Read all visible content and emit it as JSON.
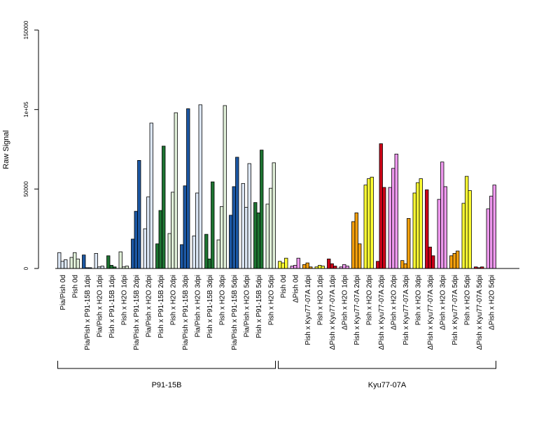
{
  "colors": {
    "light_blue": "#dbe6f4",
    "dark_blue": "#1c58a4",
    "dark_green": "#1e7432",
    "light_green": "#e0efd8",
    "yellow": "#ffff33",
    "violet": "#ee99ee",
    "red": "#cc0018",
    "orange": "#f5a00d"
  },
  "chart_data": {
    "type": "bar",
    "title": "",
    "xlabel": "",
    "ylabel": "Raw Signal",
    "ylim": [
      0,
      150000
    ],
    "yticks": [
      {
        "value": 0,
        "label": "0"
      },
      {
        "value": 50000,
        "label": "50000"
      },
      {
        "value": 100000,
        "label": "1e+05"
      },
      {
        "value": 150000,
        "label": "150000"
      }
    ],
    "grid": false,
    "legend": "none",
    "categories": [
      "Pia/Pish 0d",
      "Pish 0d",
      "Pia/Pish x P91-15B 1dpi",
      "Pia/Pish x H2O 1dpi",
      "Pish x P91-15B 1dpi",
      "Pish x H2O 1dpi",
      "Pia/Pish x P91-15B 2dpi",
      "Pia/Pish x H2O 2dpi",
      "Pish x P91-15B 2dpi",
      "Pish x H2O 2dpi",
      "Pia/Pish x P91-15B 3dpi",
      "Pia/Pish x H2O 3dpi",
      "Pish x P91-15B 3dpi",
      "Pish x H2O 3dpi",
      "Pia/Pish x P91-15B 5dpi",
      "Pia/Pish x H2O 5dpi",
      "Pish x P91-15B 5dpi",
      "Pish x H2O 5dpi",
      "Pish 0d",
      "ΔPish 0d",
      "Pish x Kyu77-07A 1dpi",
      "Pish x H2O 1dpi",
      "ΔPish x Kyu77-07A 1dpi",
      "ΔPish x H2O 1dpi",
      "Pish x Kyu77-07A 2dpi",
      "Pish x H2O 2dpi",
      "ΔPish x Kyu77-07A 2dpi",
      "ΔPish x H2O 2dpi",
      "Pish x Kyu77-07A 3dpi",
      "Pish x H2O 3dpi",
      "ΔPish x Kyu77-07A 3dpi",
      "ΔPish x H2O 3dpi",
      "Pish x Kyu77-07A 5dpi",
      "Pish x H2O 5dpi",
      "ΔPish x Kyu77-07A 5dpi",
      "ΔPish x H2O 5dpi"
    ],
    "bar_colors": [
      "light_blue",
      "light_green",
      "dark_blue",
      "light_blue",
      "dark_green",
      "light_green",
      "dark_blue",
      "light_blue",
      "dark_green",
      "light_green",
      "dark_blue",
      "light_blue",
      "dark_green",
      "light_green",
      "dark_blue",
      "light_blue",
      "dark_green",
      "light_green",
      "yellow",
      "violet",
      "orange",
      "yellow",
      "red",
      "violet",
      "orange",
      "yellow",
      "red",
      "violet",
      "orange",
      "yellow",
      "red",
      "violet",
      "orange",
      "yellow",
      "red",
      "violet"
    ],
    "values": [
      [
        10000,
        4500,
        5500
      ],
      [
        7000,
        10000,
        6000
      ],
      [
        8500,
        500,
        500
      ],
      [
        9500,
        1000,
        1500
      ],
      [
        8000,
        2000,
        1000
      ],
      [
        10500,
        1000,
        1500
      ],
      [
        18500,
        36000,
        68000
      ],
      [
        25000,
        45000,
        91500
      ],
      [
        15500,
        36500,
        77000
      ],
      [
        22000,
        48000,
        98000
      ],
      [
        15000,
        52000,
        100500
      ],
      [
        20500,
        47500,
        103000
      ],
      [
        21500,
        6000,
        54500
      ],
      [
        18000,
        39000,
        102500
      ],
      [
        33500,
        51500,
        70000
      ],
      [
        53500,
        38500,
        66000
      ],
      [
        41500,
        35000,
        74500
      ],
      [
        40500,
        50500,
        66500
      ],
      [
        4500,
        3500,
        6500
      ],
      [
        1500,
        2000,
        6500
      ],
      [
        2500,
        3500,
        1000
      ],
      [
        1000,
        2000,
        1500
      ],
      [
        6000,
        3000,
        1500
      ],
      [
        1000,
        2500,
        1500
      ],
      [
        29500,
        35000,
        15500
      ],
      [
        52500,
        56500,
        57500
      ],
      [
        4500,
        78500,
        51000
      ],
      [
        51000,
        63000,
        72000
      ],
      [
        5000,
        3000,
        31500
      ],
      [
        47500,
        54000,
        56500
      ],
      [
        49500,
        13500,
        8000
      ],
      [
        43500,
        67000,
        51500
      ],
      [
        8000,
        9500,
        11000
      ],
      [
        41000,
        58000,
        49000
      ],
      [
        1000,
        500,
        1000
      ],
      [
        37500,
        45500,
        52500
      ]
    ],
    "groups": [
      {
        "label": "P91-15B",
        "from": 0,
        "to": 17
      },
      {
        "label": "Kyu77-07A",
        "from": 18,
        "to": 35
      }
    ]
  }
}
